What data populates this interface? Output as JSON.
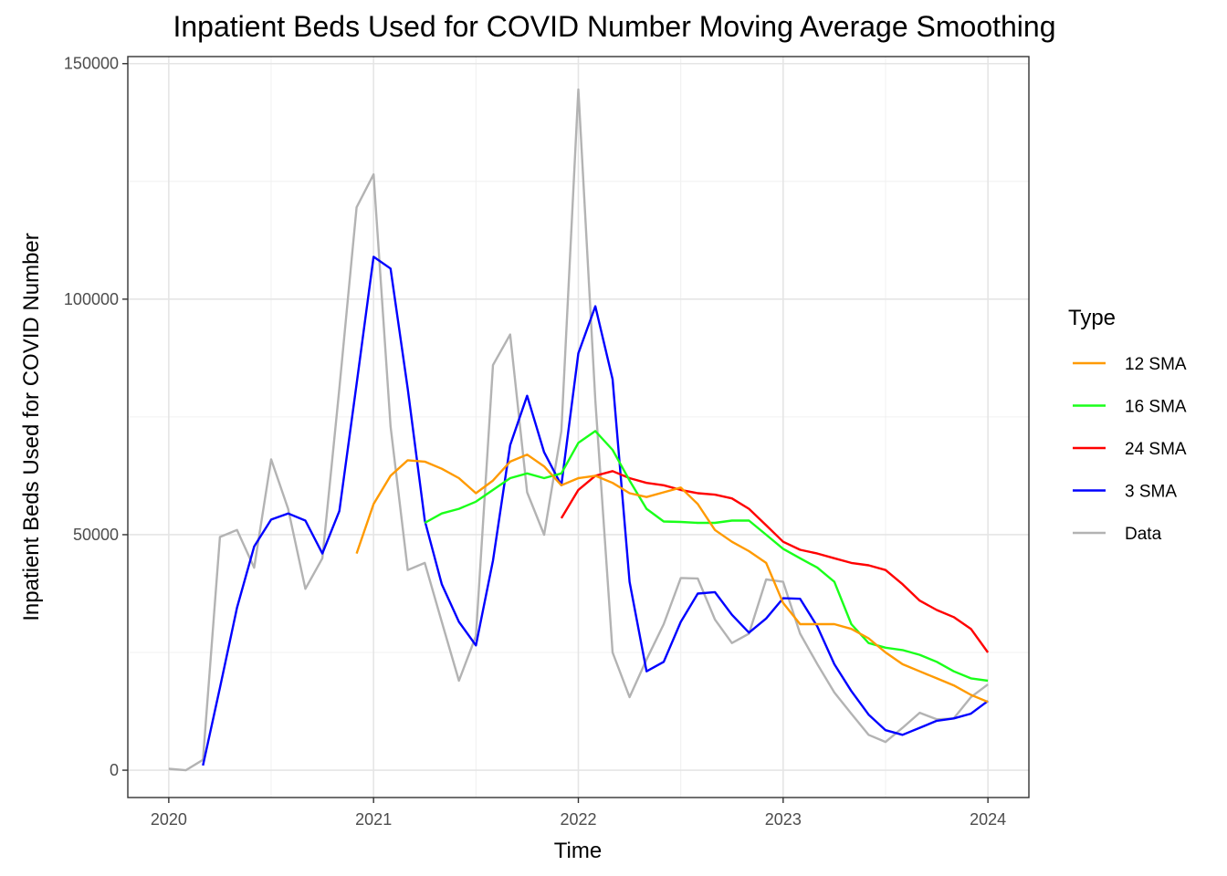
{
  "chart_data": {
    "type": "line",
    "title": "Inpatient Beds Used for COVID Number Moving Average Smoothing",
    "xlabel": "Time",
    "ylabel": "Inpatient Beds Used for COVID Number",
    "xlim": [
      2019.8,
      2024.2
    ],
    "ylim": [
      -5800,
      151500
    ],
    "x_ticks": [
      2020,
      2021,
      2022,
      2023,
      2024
    ],
    "x_tick_labels": [
      "2020",
      "2021",
      "2022",
      "2023",
      "2024"
    ],
    "y_ticks": [
      0,
      50000,
      100000,
      150000
    ],
    "y_tick_labels": [
      "0",
      "50000",
      "100000",
      "150000"
    ],
    "grid": true,
    "legend_position": "right",
    "legend_title": "Type",
    "series": [
      {
        "name": "12 SMA",
        "color": "#FF9A00",
        "x": [
          2020.917,
          2021.0,
          2021.083,
          2021.167,
          2021.25,
          2021.333,
          2021.417,
          2021.5,
          2021.583,
          2021.667,
          2021.75,
          2021.833,
          2021.917,
          2022.0,
          2022.083,
          2022.167,
          2022.25,
          2022.333,
          2022.417,
          2022.5,
          2022.583,
          2022.667,
          2022.75,
          2022.833,
          2022.917,
          2023.0,
          2023.083,
          2023.167,
          2023.25,
          2023.333,
          2023.417,
          2023.5,
          2023.583,
          2023.667,
          2023.75,
          2023.833,
          2023.917,
          2024.0
        ],
        "values": [
          46000,
          56500,
          62500,
          65800,
          65500,
          64000,
          62000,
          58800,
          61500,
          65500,
          67000,
          64500,
          60500,
          62000,
          62500,
          61000,
          58800,
          58000,
          59000,
          60000,
          56500,
          51000,
          48500,
          46500,
          44000,
          35500,
          31000,
          31000,
          31000,
          30000,
          28000,
          25000,
          22500,
          21000,
          19500,
          18000,
          16000,
          14500
        ]
      },
      {
        "name": "16 SMA",
        "color": "#1AFF1A",
        "x": [
          2021.25,
          2021.333,
          2021.417,
          2021.5,
          2021.583,
          2021.667,
          2021.75,
          2021.833,
          2021.917,
          2022.0,
          2022.083,
          2022.167,
          2022.25,
          2022.333,
          2022.417,
          2022.5,
          2022.583,
          2022.667,
          2022.75,
          2022.833,
          2022.917,
          2023.0,
          2023.083,
          2023.167,
          2023.25,
          2023.333,
          2023.417,
          2023.5,
          2023.583,
          2023.667,
          2023.75,
          2023.833,
          2023.917,
          2024.0
        ],
        "values": [
          52500,
          54500,
          55500,
          57000,
          59500,
          62000,
          63000,
          62000,
          63000,
          69500,
          72000,
          68000,
          61500,
          55500,
          52800,
          52700,
          52500,
          52500,
          53000,
          53000,
          50000,
          47000,
          45000,
          43000,
          40000,
          31000,
          27000,
          26000,
          25500,
          24500,
          23000,
          21000,
          19500,
          19000
        ]
      },
      {
        "name": "24 SMA",
        "color": "#FF0000",
        "x": [
          2021.917,
          2022.0,
          2022.083,
          2022.167,
          2022.25,
          2022.333,
          2022.417,
          2022.5,
          2022.583,
          2022.667,
          2022.75,
          2022.833,
          2022.917,
          2023.0,
          2023.083,
          2023.167,
          2023.25,
          2023.333,
          2023.417,
          2023.5,
          2023.583,
          2023.667,
          2023.75,
          2023.833,
          2023.917,
          2024.0
        ],
        "values": [
          53500,
          59500,
          62500,
          63500,
          62000,
          61000,
          60500,
          59500,
          58800,
          58500,
          57700,
          55500,
          52000,
          48500,
          46800,
          46000,
          45000,
          44000,
          43500,
          42500,
          39500,
          36000,
          34000,
          32500,
          30000,
          25000
        ]
      },
      {
        "name": "3 SMA",
        "color": "#0000FF",
        "x": [
          2020.167,
          2020.25,
          2020.333,
          2020.417,
          2020.5,
          2020.583,
          2020.667,
          2020.75,
          2020.833,
          2020.917,
          2021.0,
          2021.083,
          2021.167,
          2021.25,
          2021.333,
          2021.417,
          2021.5,
          2021.583,
          2021.667,
          2021.75,
          2021.833,
          2021.917,
          2022.0,
          2022.083,
          2022.167,
          2022.25,
          2022.333,
          2022.417,
          2022.5,
          2022.583,
          2022.667,
          2022.75,
          2022.833,
          2022.917,
          2023.0,
          2023.083,
          2023.167,
          2023.25,
          2023.333,
          2023.417,
          2023.5,
          2023.583,
          2023.667,
          2023.75,
          2023.833,
          2023.917,
          2024.0
        ],
        "values": [
          1000,
          17500,
          34500,
          47500,
          53200,
          54500,
          53000,
          46000,
          55000,
          82000,
          109000,
          106500,
          81000,
          53000,
          39500,
          31500,
          26500,
          44500,
          69000,
          79500,
          67500,
          60500,
          88500,
          98500,
          83000,
          40000,
          21000,
          23000,
          31500,
          37500,
          37800,
          33000,
          29200,
          32200,
          36500,
          36400,
          30500,
          22500,
          16800,
          11800,
          8500,
          7500,
          9000,
          10500,
          11000,
          12000,
          14700
        ]
      },
      {
        "name": "Data",
        "color": "#B3B3B3",
        "x": [
          2020.0,
          2020.083,
          2020.167,
          2020.25,
          2020.333,
          2020.417,
          2020.5,
          2020.583,
          2020.667,
          2020.75,
          2020.833,
          2020.917,
          2021.0,
          2021.083,
          2021.167,
          2021.25,
          2021.333,
          2021.417,
          2021.5,
          2021.583,
          2021.667,
          2021.75,
          2021.833,
          2021.917,
          2022.0,
          2022.083,
          2022.167,
          2022.25,
          2022.333,
          2022.417,
          2022.5,
          2022.583,
          2022.667,
          2022.75,
          2022.833,
          2022.917,
          2023.0,
          2023.083,
          2023.167,
          2023.25,
          2023.333,
          2023.417,
          2023.5,
          2023.583,
          2023.667,
          2023.75,
          2023.833,
          2023.917,
          2024.0
        ],
        "values": [
          300,
          0,
          2200,
          49500,
          51000,
          43000,
          66000,
          55500,
          38500,
          45000,
          81000,
          119500,
          126500,
          73000,
          42500,
          44000,
          31500,
          19000,
          28500,
          86000,
          92500,
          59000,
          50000,
          72000,
          144500,
          78500,
          25000,
          15500,
          23500,
          31000,
          40800,
          40700,
          32000,
          27000,
          29000,
          40500,
          40000,
          29000,
          22500,
          16500,
          12000,
          7500,
          6000,
          9000,
          12200,
          10800,
          11000,
          15500,
          18200
        ]
      }
    ]
  }
}
